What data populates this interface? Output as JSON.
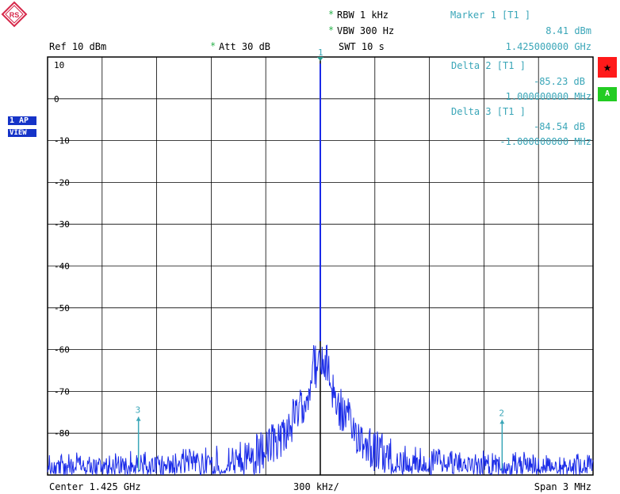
{
  "header": {
    "rbw": "RBW 1 kHz",
    "vbw": "VBW 300 Hz",
    "swt": "SWT 10 s",
    "ref": "Ref  10 dBm",
    "att": "Att  30 dB",
    "star": "*"
  },
  "markers": {
    "marker1_title": "Marker 1 [T1 ]",
    "marker1_level": "8.41 dBm",
    "marker1_freq": "1.425000000 GHz",
    "delta2_title": "Delta 2 [T1 ]",
    "delta2_level": "-85.23 dB",
    "delta2_freq": "1.000000000 MHz",
    "delta3_title": "Delta 3 [T1 ]",
    "delta3_level": "-84.54 dB",
    "delta3_freq": "-1.000000000 MHz"
  },
  "footer": {
    "center": "Center  1.425 GHz",
    "div": "300 kHz/",
    "span": "Span  3 MHz"
  },
  "side": {
    "trace_label_1": "1 AP",
    "trace_label_2": "VIEW",
    "red_glyph": "★",
    "green_label": "A"
  },
  "logo_letters": "RS",
  "colors": {
    "trace": "#1a2be8",
    "marker_text": "#3aa6b8",
    "grid": "#000000",
    "red_badge": "#ff1a1a",
    "green_badge": "#22cc22"
  },
  "chart_data": {
    "type": "line",
    "xlabel": "",
    "ylabel": "",
    "x_center_ghz": 1.425,
    "x_span_mhz": 3,
    "x_per_div": "300 kHz/",
    "xlim_mhz_offset": [
      -1.5,
      1.5
    ],
    "ylim": [
      -90,
      10
    ],
    "y_ticks": [
      10,
      0,
      -10,
      -20,
      -30,
      -40,
      -50,
      -60,
      -70,
      -80
    ],
    "y_tick_labels": [
      "10",
      "0",
      "-10",
      "-20",
      "-30",
      "-40",
      "-50",
      "-60",
      "-70",
      "-80"
    ],
    "grid": true,
    "series": [
      {
        "name": "",
        "x": [
          -1.5,
          -1.2,
          -0.9,
          -0.6,
          -0.45,
          -0.3,
          -0.2,
          -0.1,
          -0.05,
          0,
          0.05,
          0.1,
          0.2,
          0.3,
          0.45,
          0.6,
          0.9,
          1.2,
          1.5
        ],
        "y": [
          -86,
          -86,
          -86,
          -85,
          -84,
          -80,
          -76,
          -70,
          -63,
          8.41,
          -63,
          -70,
          -76,
          -80,
          -84,
          -85,
          -86,
          -86,
          -86
        ]
      }
    ],
    "markers": [
      {
        "label": "1",
        "x": 0,
        "y": 8.41
      },
      {
        "label": "2",
        "x": 1.0,
        "y": -76.8
      },
      {
        "label": "3",
        "x": -1.0,
        "y": -76.1
      }
    ]
  }
}
